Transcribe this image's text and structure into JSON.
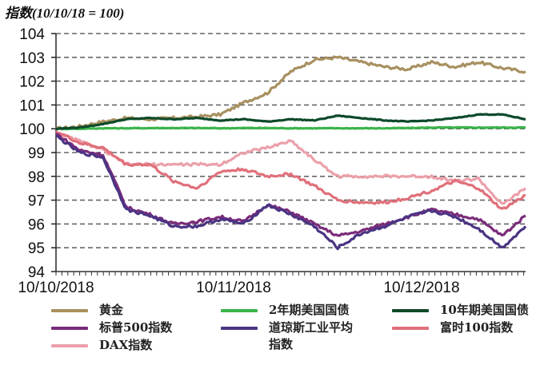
{
  "chart_data": {
    "type": "line",
    "title": "指数(10/10/18 = 100)",
    "xlabel": "",
    "ylabel": "指数",
    "ylim": [
      94,
      104
    ],
    "yticks": [
      "104",
      "103",
      "102",
      "101",
      "100",
      "99",
      "98",
      "97",
      "96",
      "95",
      "94"
    ],
    "xtick_labels": [
      "10/10/2018",
      "10/11/2018",
      "10/12/2018"
    ],
    "grid": "horizontal dashed",
    "legend_position": "bottom",
    "x": [
      0,
      5,
      10,
      15,
      20,
      25,
      30,
      35,
      40,
      45,
      50,
      55,
      60,
      65,
      70,
      75,
      80,
      85,
      90,
      95,
      100
    ],
    "x_note": "x as percent of period from 10/10/2018 to ~10/01/2019",
    "series": [
      {
        "name": "黄金",
        "color": "#a89060",
        "values": [
          100.0,
          100.1,
          100.3,
          100.45,
          100.4,
          100.45,
          100.5,
          100.6,
          101.1,
          101.5,
          102.4,
          102.9,
          103.0,
          102.8,
          102.6,
          102.5,
          102.8,
          102.6,
          102.8,
          102.55,
          102.4
        ]
      },
      {
        "name": "2年期美国国债",
        "color": "#3cb44b",
        "values": [
          100.0,
          100.0,
          100.02,
          100.02,
          100.03,
          100.03,
          100.03,
          100.02,
          100.03,
          100.03,
          100.02,
          100.02,
          100.02,
          100.02,
          100.02,
          100.03,
          100.05,
          100.05,
          100.05,
          100.05,
          100.05
        ]
      },
      {
        "name": "10年期美国国债",
        "color": "#0d4a2a",
        "values": [
          100.0,
          100.05,
          100.2,
          100.4,
          100.45,
          100.4,
          100.45,
          100.35,
          100.4,
          100.3,
          100.4,
          100.35,
          100.55,
          100.45,
          100.35,
          100.3,
          100.35,
          100.45,
          100.6,
          100.6,
          100.4
        ]
      },
      {
        "name": "标普500指数",
        "color": "#7b2b7a",
        "values": [
          99.8,
          99.1,
          98.9,
          96.7,
          96.4,
          96.0,
          96.1,
          96.3,
          96.1,
          96.8,
          96.5,
          96.0,
          95.5,
          95.7,
          96.0,
          96.3,
          96.6,
          96.4,
          96.2,
          95.5,
          96.35
        ]
      },
      {
        "name": "道琼斯工业平均指数",
        "color": "#4b3483",
        "values": [
          99.7,
          99.0,
          98.8,
          96.6,
          96.35,
          95.9,
          95.9,
          96.2,
          96.0,
          96.8,
          96.4,
          95.9,
          95.0,
          95.6,
          95.9,
          96.3,
          96.55,
          96.3,
          95.8,
          95.0,
          95.9
        ]
      },
      {
        "name": "富时100指数",
        "color": "#e0707a",
        "values": [
          99.9,
          99.4,
          99.2,
          98.5,
          98.5,
          97.8,
          97.5,
          98.2,
          98.3,
          98.0,
          98.1,
          97.6,
          97.0,
          96.9,
          96.9,
          97.1,
          97.4,
          97.8,
          97.5,
          96.6,
          97.2
        ]
      },
      {
        "name": "DAX指数",
        "color": "#eba0aa",
        "values": [
          99.8,
          99.5,
          99.1,
          98.5,
          98.5,
          98.5,
          98.5,
          98.5,
          99.0,
          99.2,
          99.5,
          98.7,
          98.0,
          98.0,
          98.0,
          98.0,
          98.0,
          97.8,
          97.9,
          96.8,
          97.5
        ]
      }
    ]
  },
  "legend": {
    "items": [
      {
        "label": "黄金",
        "color": "#a89060"
      },
      {
        "label": "2年期美国国债",
        "color": "#3cb44b"
      },
      {
        "label": "10年期美国国债",
        "color": "#0d4a2a"
      },
      {
        "label": "标普500指数",
        "color": "#7b2b7a"
      },
      {
        "label": "道琼斯工业平均\n指数",
        "color": "#4b3483"
      },
      {
        "label": "富时100指数",
        "color": "#e0707a"
      },
      {
        "label": "DAX指数",
        "color": "#eba0aa"
      }
    ]
  }
}
